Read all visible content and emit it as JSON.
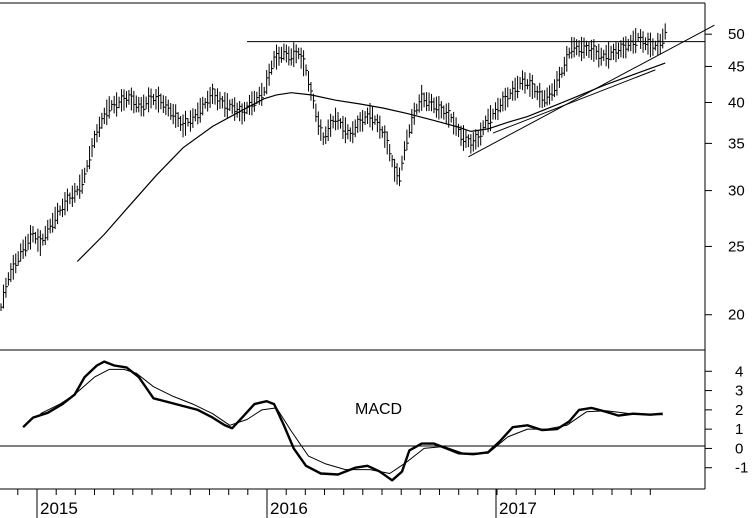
{
  "chart_data": [
    {
      "type": "ohlc",
      "yscale": "log",
      "ylim": [
        18,
        55
      ],
      "y_ticks": [
        20,
        25,
        30,
        35,
        40,
        45,
        50
      ],
      "y_tick_labels": [
        "20",
        "25",
        "30",
        "35",
        "40",
        "45",
        "50"
      ],
      "x_labels": [
        "2015",
        "2016",
        "2017"
      ],
      "grid": false,
      "bar_color": "#000000",
      "price_path": [
        [
          0,
          20.5
        ],
        [
          3,
          22.5
        ],
        [
          8,
          24.5
        ],
        [
          13,
          26.0
        ],
        [
          16,
          25.2
        ],
        [
          22,
          27.5
        ],
        [
          27,
          29.0
        ],
        [
          31,
          30.0
        ],
        [
          34,
          31.5
        ],
        [
          37,
          34.5
        ],
        [
          40,
          37.0
        ],
        [
          44,
          39.5
        ],
        [
          48,
          40.0
        ],
        [
          52,
          40.6
        ],
        [
          57,
          39.5
        ],
        [
          61,
          40.5
        ],
        [
          65,
          40.2
        ],
        [
          69,
          39.0
        ],
        [
          74,
          37.0
        ],
        [
          78,
          38.0
        ],
        [
          82,
          39.5
        ],
        [
          86,
          41.0
        ],
        [
          90,
          40.0
        ],
        [
          94,
          39.5
        ],
        [
          98,
          38.5
        ],
        [
          102,
          40.0
        ],
        [
          107,
          41.5
        ],
        [
          111,
          46.0
        ],
        [
          115,
          47.2
        ],
        [
          118,
          46.5
        ],
        [
          121,
          47.0
        ],
        [
          124,
          44.5
        ],
        [
          126,
          41.5
        ],
        [
          129,
          37.5
        ],
        [
          131,
          35.5
        ],
        [
          133,
          36.5
        ],
        [
          136,
          38.0
        ],
        [
          139,
          37.0
        ],
        [
          142,
          36.0
        ],
        [
          146,
          37.5
        ],
        [
          150,
          38.5
        ],
        [
          154,
          37.0
        ],
        [
          157,
          35.0
        ],
        [
          160,
          32.0
        ],
        [
          162,
          31.5
        ],
        [
          165,
          35.5
        ],
        [
          168,
          38.5
        ],
        [
          171,
          40.5
        ],
        [
          175,
          40.0
        ],
        [
          179,
          39.0
        ],
        [
          183,
          38.0
        ],
        [
          187,
          36.0
        ],
        [
          191,
          35.0
        ],
        [
          194,
          35.5
        ],
        [
          197,
          37.5
        ],
        [
          200,
          38.5
        ],
        [
          204,
          40.0
        ],
        [
          208,
          41.5
        ],
        [
          212,
          43.0
        ],
        [
          216,
          42.0
        ],
        [
          220,
          40.5
        ],
        [
          223,
          41.0
        ],
        [
          226,
          42.5
        ],
        [
          229,
          45.0
        ],
        [
          232,
          48.0
        ],
        [
          236,
          47.8
        ],
        [
          240,
          47.5
        ],
        [
          244,
          46.5
        ],
        [
          248,
          47.0
        ],
        [
          252,
          47.5
        ],
        [
          256,
          48.5
        ],
        [
          259,
          49.5
        ],
        [
          262,
          48.5
        ],
        [
          265,
          48.0
        ],
        [
          268,
          48.5
        ],
        [
          270,
          50.5
        ]
      ],
      "moving_average": [
        [
          31,
          23.8
        ],
        [
          42,
          26.0
        ],
        [
          52,
          28.5
        ],
        [
          63,
          31.5
        ],
        [
          74,
          34.5
        ],
        [
          86,
          37.0
        ],
        [
          98,
          39.0
        ],
        [
          107,
          40.5
        ],
        [
          112,
          41.0
        ],
        [
          118,
          41.3
        ],
        [
          126,
          41.0
        ],
        [
          136,
          40.3
        ],
        [
          146,
          39.8
        ],
        [
          155,
          39.3
        ],
        [
          165,
          38.6
        ],
        [
          175,
          37.8
        ],
        [
          185,
          37.0
        ],
        [
          191,
          36.4
        ],
        [
          198,
          36.7
        ],
        [
          206,
          37.5
        ],
        [
          214,
          38.2
        ],
        [
          222,
          39.2
        ],
        [
          232,
          40.5
        ],
        [
          245,
          42.3
        ],
        [
          257,
          43.8
        ],
        [
          270,
          45.5
        ]
      ],
      "resistance_line": [
        [
          100,
          48.8
        ],
        [
          286,
          48.8
        ]
      ],
      "trendlines": [
        [
          [
            190,
            33.5
          ],
          [
            290,
            51.5
          ]
        ]
      ]
    },
    {
      "type": "line",
      "title": "MACD",
      "ylim": [
        -2,
        5
      ],
      "y_ticks": [
        -1,
        0,
        1,
        2,
        3,
        4
      ],
      "y_tick_labels": [
        "-1",
        "0",
        "1",
        "2",
        "3",
        "4"
      ],
      "zero_line": true,
      "series": [
        {
          "role": "macd",
          "points": [
            [
              9,
              1.1
            ],
            [
              13,
              1.6
            ],
            [
              19,
              1.85
            ],
            [
              25,
              2.3
            ],
            [
              30,
              2.8
            ],
            [
              34,
              3.7
            ],
            [
              39,
              4.3
            ],
            [
              42,
              4.5
            ],
            [
              46,
              4.3
            ],
            [
              51,
              4.2
            ],
            [
              56,
              3.7
            ],
            [
              62,
              2.6
            ],
            [
              68,
              2.4
            ],
            [
              74,
              2.2
            ],
            [
              80,
              2.0
            ],
            [
              86,
              1.6
            ],
            [
              91,
              1.2
            ],
            [
              94,
              1.05
            ],
            [
              98,
              1.6
            ],
            [
              103,
              2.3
            ],
            [
              108,
              2.45
            ],
            [
              111,
              2.3
            ],
            [
              115,
              1.2
            ],
            [
              119,
              0.0
            ],
            [
              124,
              -0.9
            ],
            [
              130,
              -1.3
            ],
            [
              137,
              -1.35
            ],
            [
              144,
              -1.0
            ],
            [
              149,
              -0.9
            ],
            [
              154,
              -1.2
            ],
            [
              159,
              -1.65
            ],
            [
              163,
              -1.2
            ],
            [
              166,
              -0.1
            ],
            [
              171,
              0.25
            ],
            [
              176,
              0.25
            ],
            [
              181,
              0.0
            ],
            [
              186,
              -0.25
            ],
            [
              192,
              -0.3
            ],
            [
              198,
              -0.2
            ],
            [
              203,
              0.4
            ],
            [
              208,
              1.1
            ],
            [
              214,
              1.2
            ],
            [
              220,
              0.95
            ],
            [
              226,
              1.0
            ],
            [
              231,
              1.4
            ],
            [
              235,
              2.0
            ],
            [
              240,
              2.1
            ],
            [
              246,
              1.9
            ],
            [
              251,
              1.7
            ],
            [
              257,
              1.8
            ],
            [
              264,
              1.75
            ],
            [
              269,
              1.8
            ]
          ]
        },
        {
          "role": "signal",
          "points": [
            [
              16,
              1.8
            ],
            [
              24,
              2.3
            ],
            [
              30,
              2.8
            ],
            [
              38,
              3.7
            ],
            [
              44,
              4.1
            ],
            [
              50,
              4.1
            ],
            [
              55,
              3.9
            ],
            [
              62,
              3.2
            ],
            [
              70,
              2.7
            ],
            [
              78,
              2.3
            ],
            [
              86,
              1.8
            ],
            [
              93,
              1.2
            ],
            [
              100,
              1.5
            ],
            [
              106,
              2.0
            ],
            [
              112,
              2.1
            ],
            [
              118,
              0.9
            ],
            [
              125,
              -0.4
            ],
            [
              132,
              -0.8
            ],
            [
              140,
              -1.1
            ],
            [
              150,
              -1.1
            ],
            [
              158,
              -1.3
            ],
            [
              165,
              -0.7
            ],
            [
              172,
              0.0
            ],
            [
              180,
              0.1
            ],
            [
              188,
              -0.25
            ],
            [
              198,
              -0.25
            ],
            [
              206,
              0.6
            ],
            [
              214,
              1.0
            ],
            [
              222,
              1.0
            ],
            [
              230,
              1.2
            ],
            [
              238,
              1.9
            ],
            [
              246,
              1.95
            ],
            [
              256,
              1.8
            ],
            [
              269,
              1.75
            ]
          ]
        }
      ]
    }
  ]
}
